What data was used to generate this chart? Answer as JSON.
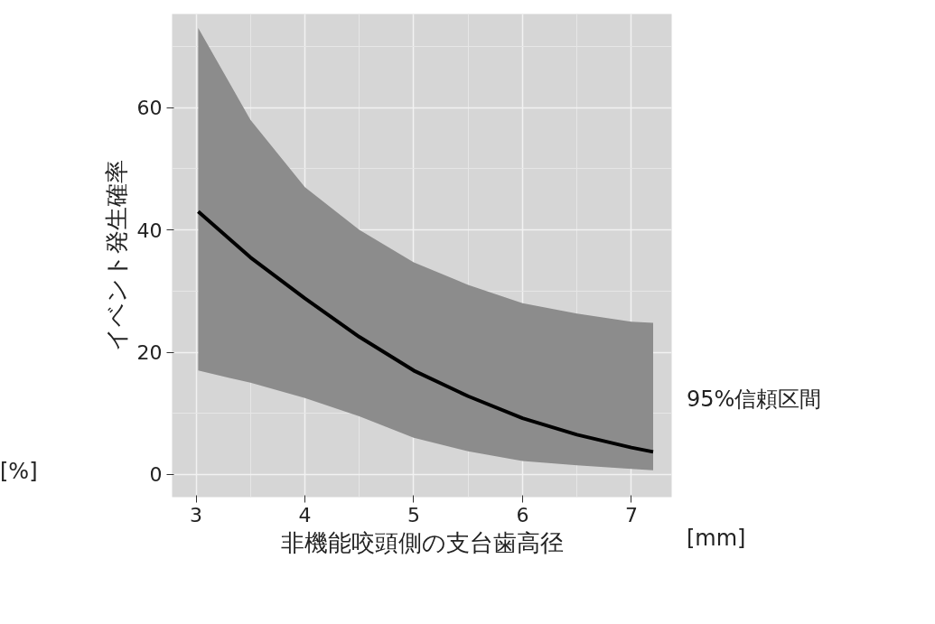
{
  "chart_data": {
    "type": "line",
    "xlabel": "非機能咬頭側の支台歯高径",
    "ylabel": "イベント発生確率",
    "annotations": [
      "[%]",
      "[mm]",
      "95%信頼区間"
    ],
    "x": [
      3.02,
      3.5,
      4,
      4.5,
      5,
      5.5,
      6,
      6.5,
      7,
      7.2
    ],
    "series": [
      {
        "color": "#000000",
        "values": [
          43,
          35.5,
          28.8,
          22.5,
          17,
          12.8,
          9.2,
          6.5,
          4.4,
          3.7
        ],
        "lower": [
          17,
          15,
          12.5,
          9.5,
          6,
          3.8,
          2.2,
          1.5,
          0.9,
          0.7
        ],
        "upper": [
          73,
          58,
          47,
          40,
          34.7,
          31,
          28,
          26.3,
          25,
          24.8
        ]
      }
    ],
    "xlim": [
      2.78,
      7.37
    ],
    "ylim": [
      -3.7,
      75.3
    ],
    "xticks": [
      3,
      4,
      5,
      6,
      7
    ],
    "yticks": [
      0,
      20,
      40,
      60
    ],
    "grid": true
  }
}
